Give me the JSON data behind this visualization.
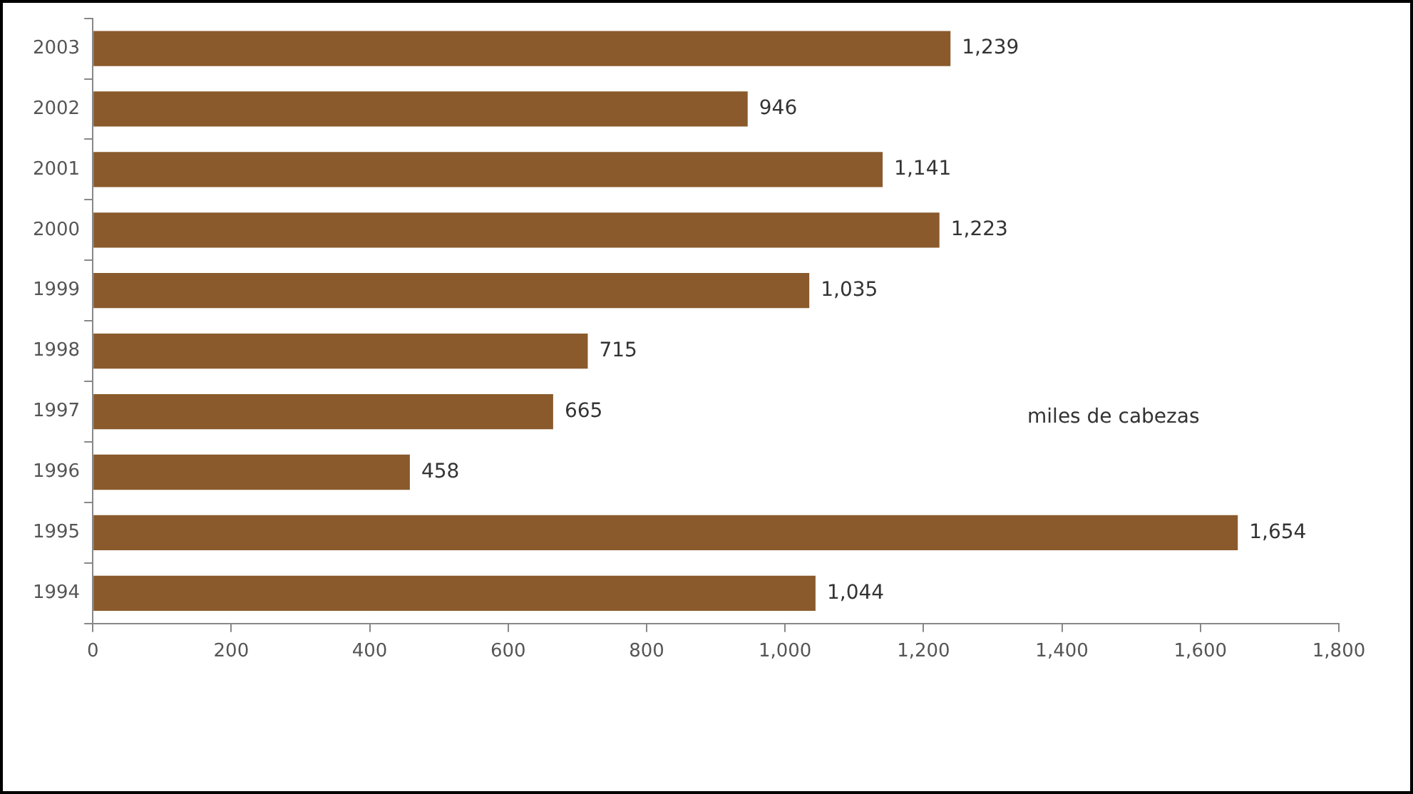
{
  "chart_data": {
    "type": "bar",
    "orientation": "horizontal",
    "categories": [
      "2003",
      "2002",
      "2001",
      "2000",
      "1999",
      "1998",
      "1997",
      "1996",
      "1995",
      "1994"
    ],
    "values": [
      1239,
      946,
      1141,
      1223,
      1035,
      715,
      665,
      458,
      1654,
      1044
    ],
    "color": "#8a5a2c",
    "xlim": [
      0,
      1800
    ],
    "xticks": [
      0,
      200,
      400,
      600,
      800,
      {
        "value": 1000,
        "label": "1,000"
      },
      {
        "value": 1200,
        "label": "1,200"
      },
      {
        "value": 1400,
        "label": "1,400"
      },
      {
        "value": 1600,
        "label": "1,600"
      },
      {
        "value": 1800,
        "label": "1,800"
      }
    ],
    "value_labels": [
      "1,239",
      "946",
      "1,141",
      "1,223",
      "1,035",
      "715",
      "665",
      "458",
      "1,654",
      "1,044"
    ],
    "grid": false,
    "legend": false,
    "annotations": [
      "miles de cabezas"
    ]
  }
}
